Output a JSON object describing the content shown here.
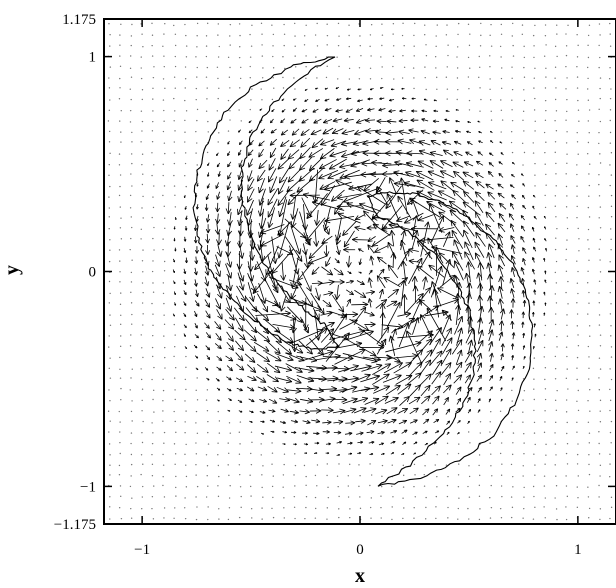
{
  "chart_data": {
    "type": "vector-field",
    "title": "",
    "xlabel": "x",
    "ylabel": "y",
    "xlim": [
      -1.175,
      1.175
    ],
    "ylim": [
      -1.175,
      1.175
    ],
    "x_ticks": [
      {
        "value": -1,
        "label": "−1"
      },
      {
        "value": 0,
        "label": "0"
      },
      {
        "value": 1,
        "label": "1"
      }
    ],
    "y_ticks": [
      {
        "value": 1.175,
        "label": "1.175"
      },
      {
        "value": 1,
        "label": "1"
      },
      {
        "value": 0,
        "label": "0"
      },
      {
        "value": -1,
        "label": "−1"
      },
      {
        "value": -1.175,
        "label": "−1.175"
      }
    ],
    "grid": false,
    "legend": "none",
    "field": {
      "rotation": "counterclockwise",
      "grid_spacing": 0.1,
      "peak_speed_radius": 0.42,
      "background_dot_color": "#777777",
      "arrow_color": "#000000"
    },
    "spiral_arm_outlines": [
      {
        "name": "upper-left arm",
        "outer_edge": [
          [
            -0.12,
            1.0
          ],
          [
            -0.3,
            0.96
          ],
          [
            -0.48,
            0.87
          ],
          [
            -0.62,
            0.74
          ],
          [
            -0.7,
            0.6
          ],
          [
            -0.75,
            0.45
          ],
          [
            -0.76,
            0.3
          ],
          [
            -0.74,
            0.15
          ],
          [
            -0.7,
            0.03
          ],
          [
            -0.63,
            -0.08
          ],
          [
            -0.53,
            -0.19
          ],
          [
            -0.43,
            -0.27
          ],
          [
            -0.33,
            -0.33
          ],
          [
            -0.22,
            -0.36
          ],
          [
            -0.1,
            -0.35
          ]
        ],
        "inner_edge": [
          [
            -0.12,
            1.0
          ],
          [
            -0.28,
            0.9
          ],
          [
            -0.41,
            0.77
          ],
          [
            -0.5,
            0.63
          ],
          [
            -0.54,
            0.48
          ],
          [
            -0.54,
            0.33
          ],
          [
            -0.51,
            0.19
          ],
          [
            -0.46,
            0.07
          ],
          [
            -0.39,
            -0.04
          ],
          [
            -0.31,
            -0.13
          ],
          [
            -0.23,
            -0.2
          ],
          [
            -0.16,
            -0.25
          ],
          [
            -0.1,
            -0.35
          ]
        ]
      },
      {
        "name": "lower-right arm",
        "outer_edge": [
          [
            0.08,
            -1.0
          ],
          [
            0.28,
            -0.96
          ],
          [
            0.46,
            -0.88
          ],
          [
            0.61,
            -0.76
          ],
          [
            0.72,
            -0.6
          ],
          [
            0.78,
            -0.44
          ],
          [
            0.79,
            -0.28
          ],
          [
            0.77,
            -0.12
          ],
          [
            0.71,
            0.02
          ],
          [
            0.62,
            0.14
          ],
          [
            0.5,
            0.25
          ],
          [
            0.38,
            0.32
          ],
          [
            0.26,
            0.36
          ],
          [
            0.14,
            0.37
          ],
          [
            0.04,
            0.35
          ]
        ],
        "inner_edge": [
          [
            0.08,
            -1.0
          ],
          [
            0.23,
            -0.9
          ],
          [
            0.37,
            -0.77
          ],
          [
            0.47,
            -0.63
          ],
          [
            0.52,
            -0.48
          ],
          [
            0.53,
            -0.33
          ],
          [
            0.5,
            -0.18
          ],
          [
            0.44,
            -0.05
          ],
          [
            0.36,
            0.06
          ],
          [
            0.27,
            0.15
          ],
          [
            0.17,
            0.22
          ],
          [
            0.08,
            0.26
          ],
          [
            0.04,
            0.35
          ]
        ]
      }
    ]
  }
}
